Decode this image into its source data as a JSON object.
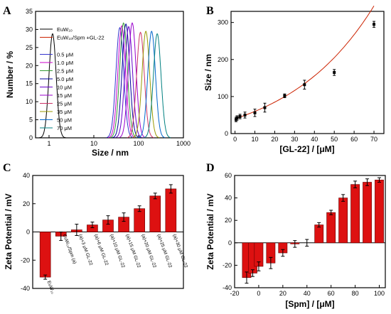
{
  "chart_data": [
    {
      "panel": "A",
      "type": "line",
      "xlabel": "Size / nm",
      "ylabel": "Number / %",
      "xscale": "log",
      "xlim": [
        0.5,
        1000
      ],
      "ylim": [
        0,
        35
      ],
      "xticks": [
        "1",
        "10",
        "100",
        "1000"
      ],
      "yticks": [
        "0",
        "5",
        "10",
        "15",
        "20",
        "25",
        "30",
        "35"
      ],
      "legend_header": "EuW₁₀/Spm +GL-22",
      "series": [
        {
          "name": "EuW₁₀",
          "color": "#000000",
          "peak_x": 1.2,
          "peak_y": 28.8
        },
        {
          "name": "0.5 μM",
          "color": "#3333cc",
          "peak_x": 38,
          "peak_y": 30.5
        },
        {
          "name": "1.0 μM",
          "color": "#cc00cc",
          "peak_x": 42,
          "peak_y": 31.0
        },
        {
          "name": "2.5 μM",
          "color": "#339933",
          "peak_x": 46,
          "peak_y": 31.8
        },
        {
          "name": "5.0 μM",
          "color": "#000099",
          "peak_x": 52,
          "peak_y": 31.5
        },
        {
          "name": "10 μM",
          "color": "#6600cc",
          "peak_x": 60,
          "peak_y": 30.8
        },
        {
          "name": "15 μM",
          "color": "#9900cc",
          "peak_x": 72,
          "peak_y": 31.8
        },
        {
          "name": "25 μM",
          "color": "#cc3366",
          "peak_x": 110,
          "peak_y": 29.2
        },
        {
          "name": "35 μM",
          "color": "#999900",
          "peak_x": 145,
          "peak_y": 29.5
        },
        {
          "name": "50 μM",
          "color": "#0066cc",
          "peak_x": 195,
          "peak_y": 29.5
        },
        {
          "name": "70 μM",
          "color": "#008080",
          "peak_x": 260,
          "peak_y": 28.8
        }
      ]
    },
    {
      "panel": "B",
      "type": "scatter",
      "xlabel": "[GL-22] / [μM]",
      "ylabel": "Size / nm",
      "xlim": [
        -2,
        75
      ],
      "ylim": [
        0,
        330
      ],
      "xticks": [
        "0",
        "10",
        "20",
        "30",
        "40",
        "50",
        "60",
        "70"
      ],
      "yticks": [
        "0",
        "100",
        "200",
        "300"
      ],
      "points": [
        {
          "x": 0.5,
          "y": 38,
          "err": 6
        },
        {
          "x": 1,
          "y": 42,
          "err": 6
        },
        {
          "x": 2.5,
          "y": 46,
          "err": 6
        },
        {
          "x": 5,
          "y": 50,
          "err": 8
        },
        {
          "x": 10,
          "y": 56,
          "err": 10
        },
        {
          "x": 15,
          "y": 70,
          "err": 12
        },
        {
          "x": 25,
          "y": 102,
          "err": 5
        },
        {
          "x": 35,
          "y": 132,
          "err": 12
        },
        {
          "x": 50,
          "y": 165,
          "err": 8
        },
        {
          "x": 70,
          "y": 295,
          "err": 8
        }
      ],
      "fit_color": "#cc2200"
    },
    {
      "panel": "C",
      "type": "bar",
      "ylabel": "Zeta Potential / mV",
      "ylim": [
        -40,
        40
      ],
      "yticks": [
        "-40",
        "-20",
        "0",
        "20",
        "40"
      ],
      "categories": [
        "EuW₁₀",
        "EuW₁₀/Spm (a)",
        "(a)+3 μM GL-22",
        "(a)+6 μM GL-22",
        "(a)+10 μM GL-22",
        "(a)+15 μM GL-22",
        "(a)+20 μM GL-22",
        "(a)+25 μM GL-22",
        "(a)+30 μM GL-22"
      ],
      "values": [
        -32,
        -3,
        1.5,
        5,
        8.5,
        10.5,
        16.5,
        25.5,
        30.5
      ],
      "errors": [
        1.5,
        3,
        4,
        2,
        3,
        3,
        2,
        2,
        3
      ],
      "bar_color": "#dd1111"
    },
    {
      "panel": "D",
      "type": "bar",
      "xlabel": "[Spm] / [μM]",
      "ylabel": "Zeta Potential / mV",
      "xlim": [
        -20,
        105
      ],
      "ylim": [
        -40,
        60
      ],
      "xticks": [
        "-20",
        "0",
        "20",
        "40",
        "60",
        "80",
        "100"
      ],
      "yticks": [
        "-40",
        "-20",
        "0",
        "20",
        "40",
        "60"
      ],
      "x": [
        -10,
        -5,
        0,
        10,
        20,
        30,
        40,
        50,
        60,
        70,
        80,
        90,
        100
      ],
      "values": [
        -31,
        -27,
        -21,
        -18,
        -9,
        -1,
        0,
        16,
        27,
        40,
        52,
        54,
        56
      ],
      "errors": [
        5,
        3,
        4,
        5,
        3,
        3,
        3,
        2,
        2,
        3,
        3,
        3,
        2
      ],
      "bar_color": "#dd1111"
    }
  ]
}
